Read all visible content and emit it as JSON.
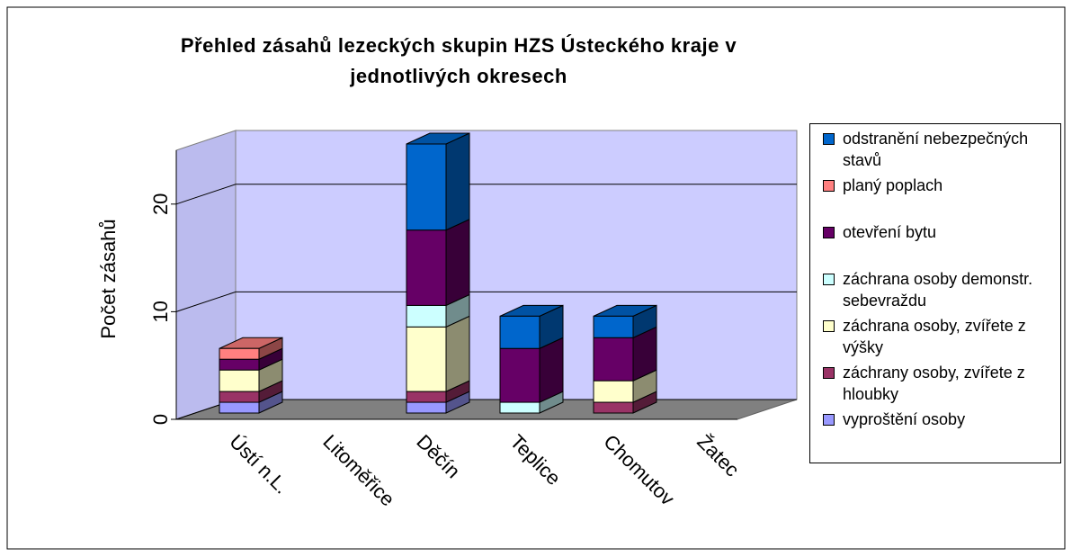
{
  "chart_data": {
    "type": "bar3d_stacked",
    "title": "Přehled zásahů lezeckých skupin HZS Ústeckého kraje v jednotlivých okresech",
    "y_label": "Počet zásahů",
    "categories": [
      "Ústí n.L.",
      "Litoměřice",
      "Děčín",
      "Teplice",
      "Chomutov",
      "Žatec"
    ],
    "series": [
      {
        "name": "vyproštění osoby",
        "color": "#9999ff",
        "values": [
          1,
          0,
          1,
          0,
          0,
          0
        ]
      },
      {
        "name": "záchrany osoby, zvířete z hloubky",
        "color": "#993366",
        "values": [
          1,
          0,
          1,
          0,
          1,
          0
        ]
      },
      {
        "name": "záchrana osoby, zvířete z výšky",
        "color": "#ffffcc",
        "values": [
          2,
          0,
          6,
          0,
          2,
          0
        ]
      },
      {
        "name": "záchrana osoby demonstr. sebevraždu",
        "color": "#ccffff",
        "values": [
          0,
          0,
          2,
          1,
          0,
          0
        ]
      },
      {
        "name": "otevření bytu",
        "color": "#660066",
        "values": [
          1,
          0,
          7,
          5,
          4,
          0
        ]
      },
      {
        "name": "planý poplach",
        "color": "#ff8080",
        "values": [
          1,
          0,
          0,
          0,
          0,
          0
        ]
      },
      {
        "name": "odstranění nebezpečných stavů",
        "color": "#0066cc",
        "values": [
          0,
          0,
          8,
          3,
          2,
          0
        ]
      }
    ],
    "ylim": [
      0,
      25
    ],
    "yticks": [
      0,
      10,
      20
    ],
    "grid": true,
    "legend": "right"
  }
}
